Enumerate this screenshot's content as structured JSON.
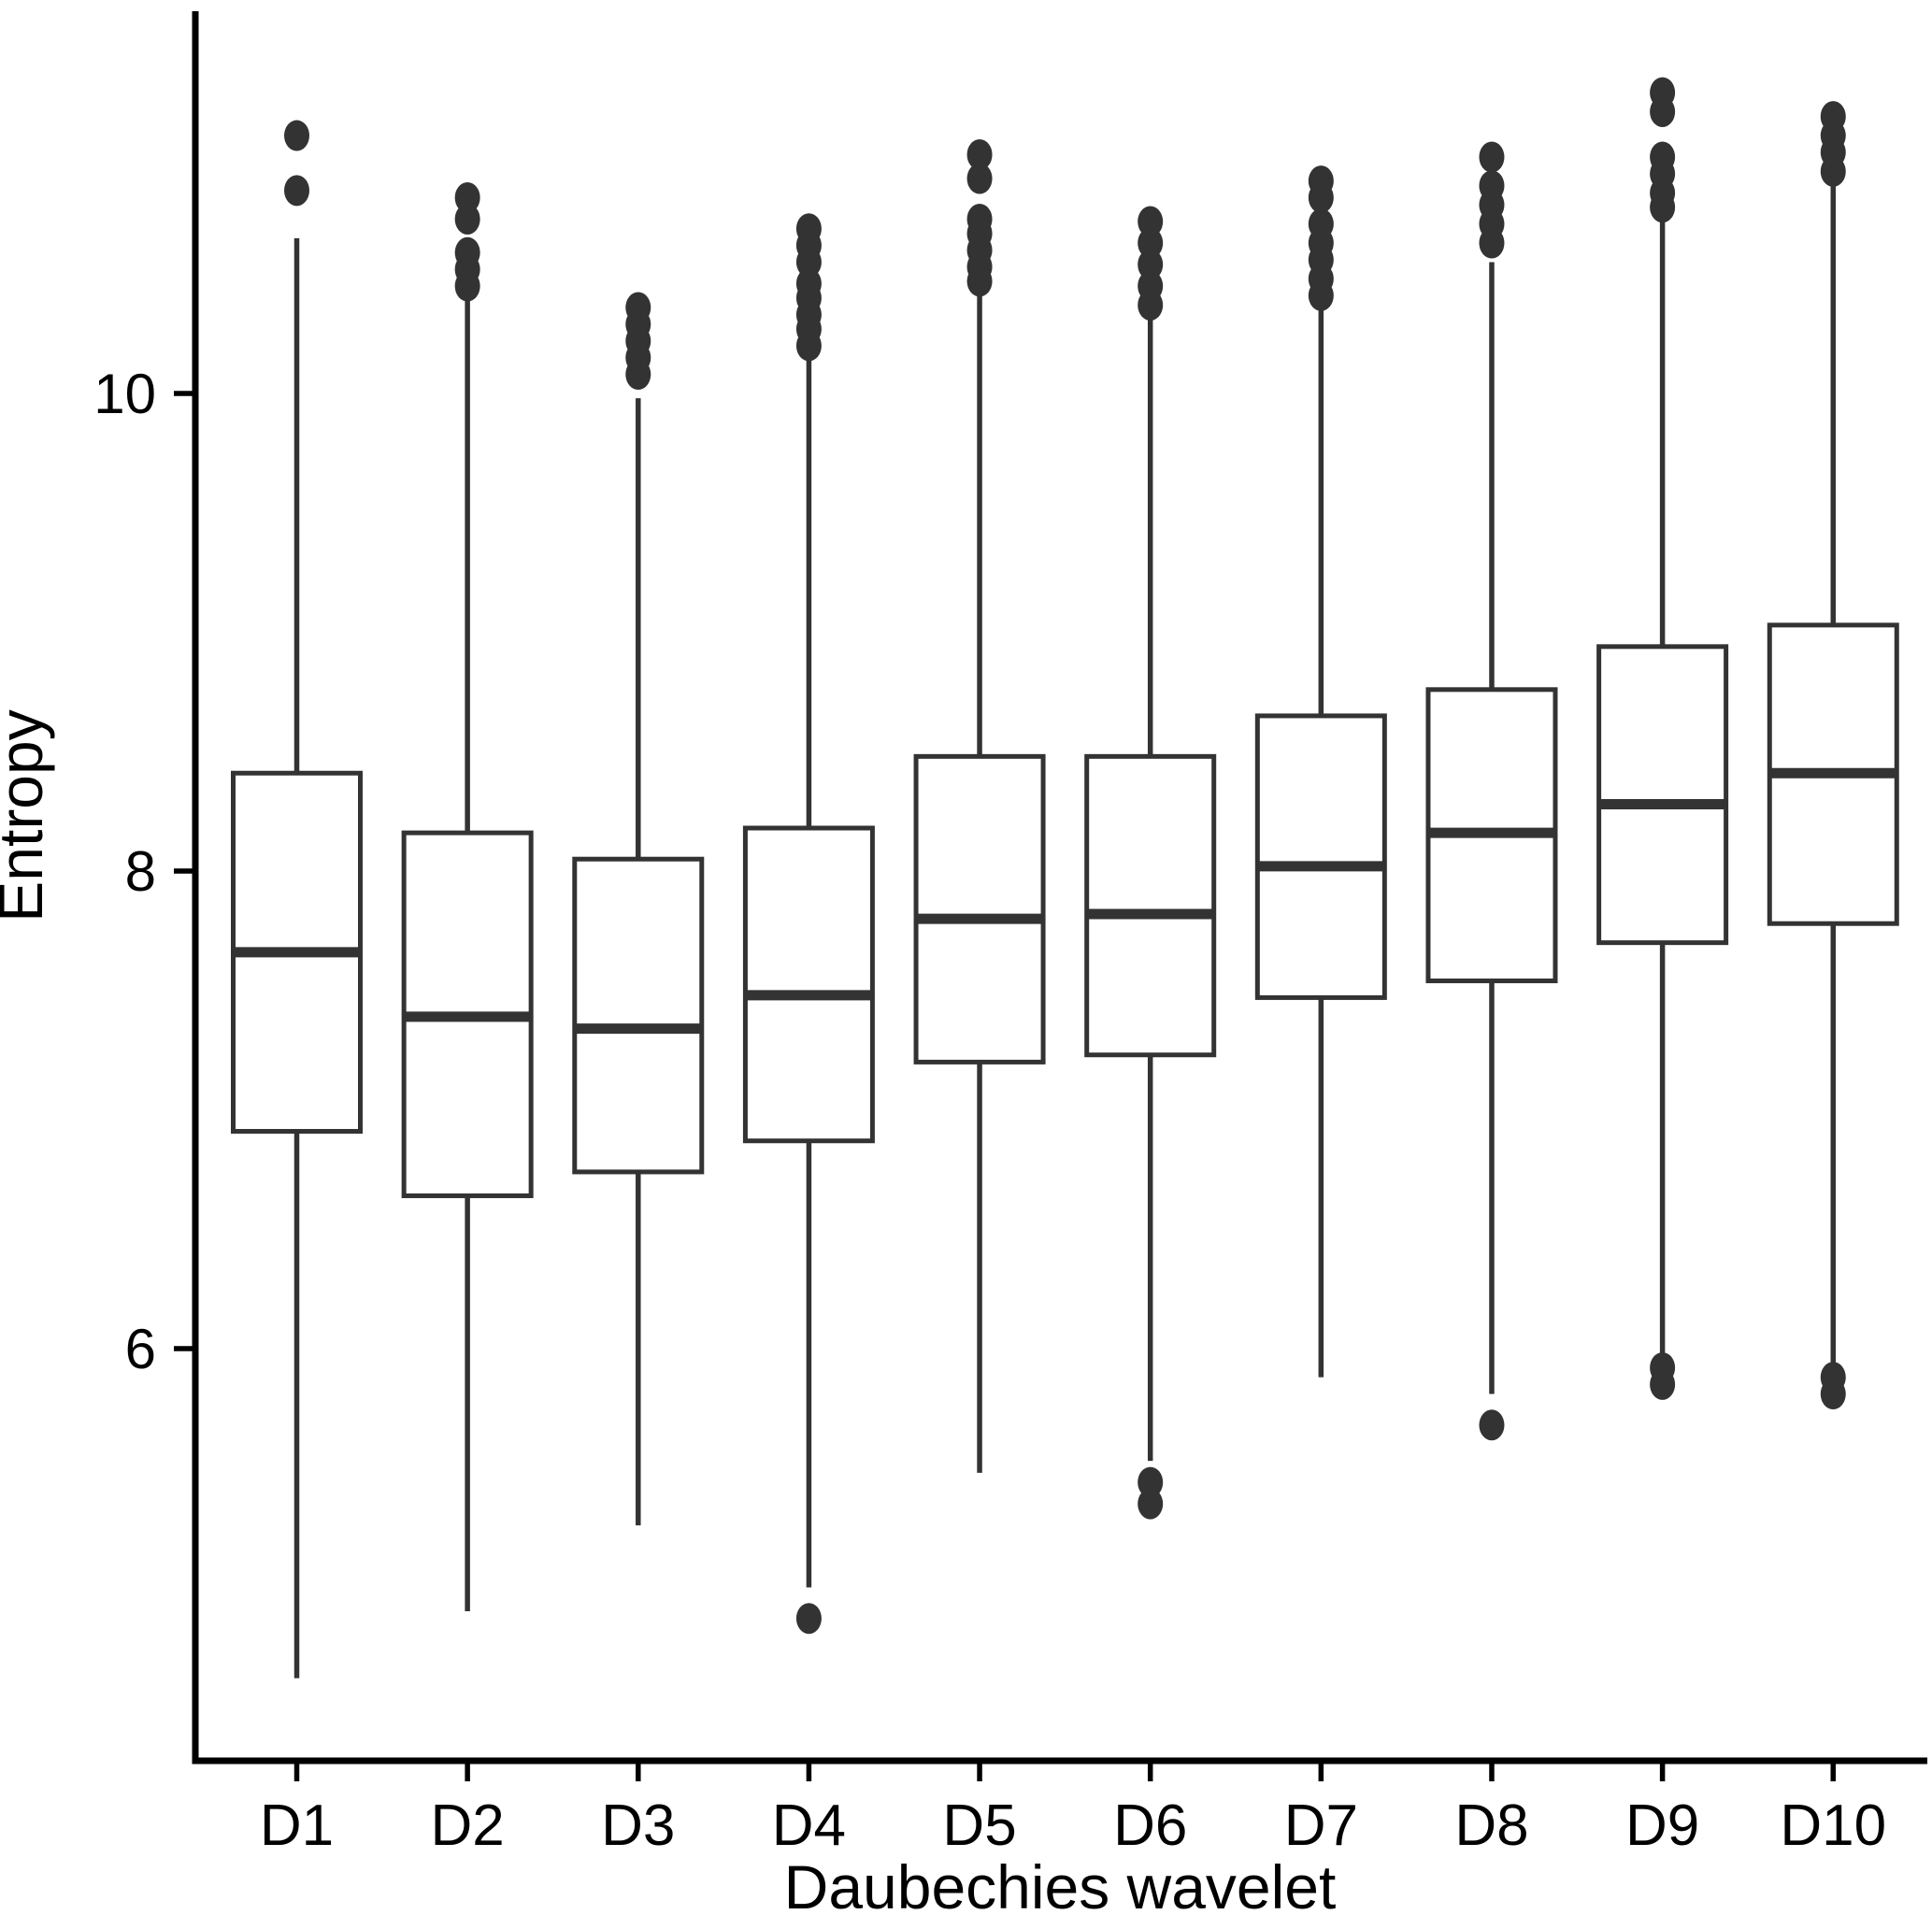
{
  "figure": {
    "background": "#ffffff",
    "box_stroke_color": "#333333",
    "outlier_color": "#333333",
    "axis_color": "#000000",
    "text_color": "#000000"
  },
  "chart_data": {
    "type": "boxplot",
    "title": "",
    "xlabel": "Daubechies wavelet",
    "ylabel": "Entropy",
    "categories": [
      "D1",
      "D2",
      "D3",
      "D4",
      "D5",
      "D6",
      "D7",
      "D8",
      "D9",
      "D10"
    ],
    "y_ticks": [
      6,
      8,
      10
    ],
    "ylim": [
      4.1,
      11.7
    ],
    "grid": false,
    "legend": false,
    "series": [
      {
        "category": "D1",
        "whisker_low": 4.62,
        "q1": 6.91,
        "median": 7.66,
        "q3": 8.41,
        "whisker_high": 10.65,
        "outliers_high": [
          10.85,
          11.08
        ],
        "outliers_low": []
      },
      {
        "category": "D2",
        "whisker_low": 4.9,
        "q1": 6.64,
        "median": 7.39,
        "q3": 8.16,
        "whisker_high": 10.42,
        "outliers_high": [
          10.45,
          10.52,
          10.59,
          10.73,
          10.82
        ],
        "outliers_low": []
      },
      {
        "category": "D3",
        "whisker_low": 5.26,
        "q1": 6.74,
        "median": 7.34,
        "q3": 8.05,
        "whisker_high": 9.98,
        "outliers_high": [
          10.08,
          10.15,
          10.22,
          10.29,
          10.36
        ],
        "outliers_low": []
      },
      {
        "category": "D4",
        "whisker_low": 5.0,
        "q1": 6.87,
        "median": 7.48,
        "q3": 8.18,
        "whisker_high": 10.14,
        "outliers_high": [
          10.2,
          10.27,
          10.33,
          10.4,
          10.46,
          10.55,
          10.62,
          10.69
        ],
        "outliers_low": [
          4.87
        ]
      },
      {
        "category": "D5",
        "whisker_low": 5.48,
        "q1": 7.2,
        "median": 7.8,
        "q3": 8.48,
        "whisker_high": 10.43,
        "outliers_high": [
          10.47,
          10.53,
          10.6,
          10.67,
          10.73,
          10.9,
          11.0
        ],
        "outliers_low": []
      },
      {
        "category": "D6",
        "whisker_low": 5.53,
        "q1": 7.23,
        "median": 7.82,
        "q3": 8.48,
        "whisker_high": 10.33,
        "outliers_high": [
          10.37,
          10.45,
          10.54,
          10.63,
          10.72
        ],
        "outliers_low": [
          5.35,
          5.44
        ]
      },
      {
        "category": "D7",
        "whisker_low": 5.88,
        "q1": 7.47,
        "median": 8.02,
        "q3": 8.65,
        "whisker_high": 10.38,
        "outliers_high": [
          10.41,
          10.48,
          10.56,
          10.63,
          10.71,
          10.82,
          10.89
        ],
        "outliers_low": []
      },
      {
        "category": "D8",
        "whisker_low": 5.81,
        "q1": 7.54,
        "median": 8.16,
        "q3": 8.76,
        "whisker_high": 10.55,
        "outliers_high": [
          10.63,
          10.71,
          10.79,
          10.87,
          10.99
        ],
        "outliers_low": [
          5.68
        ]
      },
      {
        "category": "D9",
        "whisker_low": 5.97,
        "q1": 7.7,
        "median": 8.28,
        "q3": 8.94,
        "whisker_high": 10.73,
        "outliers_high": [
          10.78,
          10.84,
          10.92,
          10.99,
          11.18,
          11.26
        ],
        "outliers_low": [
          5.85,
          5.92
        ]
      },
      {
        "category": "D10",
        "whisker_low": 5.91,
        "q1": 7.78,
        "median": 8.41,
        "q3": 9.03,
        "whisker_high": 10.88,
        "outliers_high": [
          10.93,
          11.01,
          11.08,
          11.16
        ],
        "outliers_low": [
          5.81,
          5.88
        ]
      }
    ]
  }
}
